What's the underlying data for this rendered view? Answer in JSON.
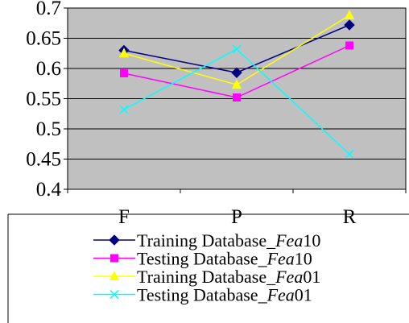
{
  "chart_data": {
    "type": "line",
    "categories": [
      "F",
      "P",
      "R"
    ],
    "ylim": [
      0.4,
      0.7
    ],
    "yticks": [
      "0.4",
      "0.45",
      "0.5",
      "0.55",
      "0.6",
      "0.65",
      "0.7"
    ],
    "grid": true,
    "plot_background": "#c0c0c0",
    "legend_position": "bottom",
    "series": [
      {
        "name_prefix": "Training Database_",
        "name_italic": "Fea",
        "name_suffix": "10",
        "color": "#000080",
        "marker": "diamond",
        "values": [
          0.63,
          0.593,
          0.672
        ]
      },
      {
        "name_prefix": "Testing Database_",
        "name_italic": "Fea",
        "name_suffix": "10",
        "color": "#ff00ff",
        "marker": "square",
        "values": [
          0.592,
          0.552,
          0.638
        ]
      },
      {
        "name_prefix": "Training Database_",
        "name_italic": "Fea",
        "name_suffix": "01",
        "color": "#ffff00",
        "marker": "triangle",
        "values": [
          0.625,
          0.573,
          0.688
        ]
      },
      {
        "name_prefix": "Testing Database_",
        "name_italic": "Fea",
        "name_suffix": "01",
        "color": "#00ffff",
        "marker": "x",
        "values": [
          0.532,
          0.632,
          0.458
        ]
      }
    ]
  }
}
